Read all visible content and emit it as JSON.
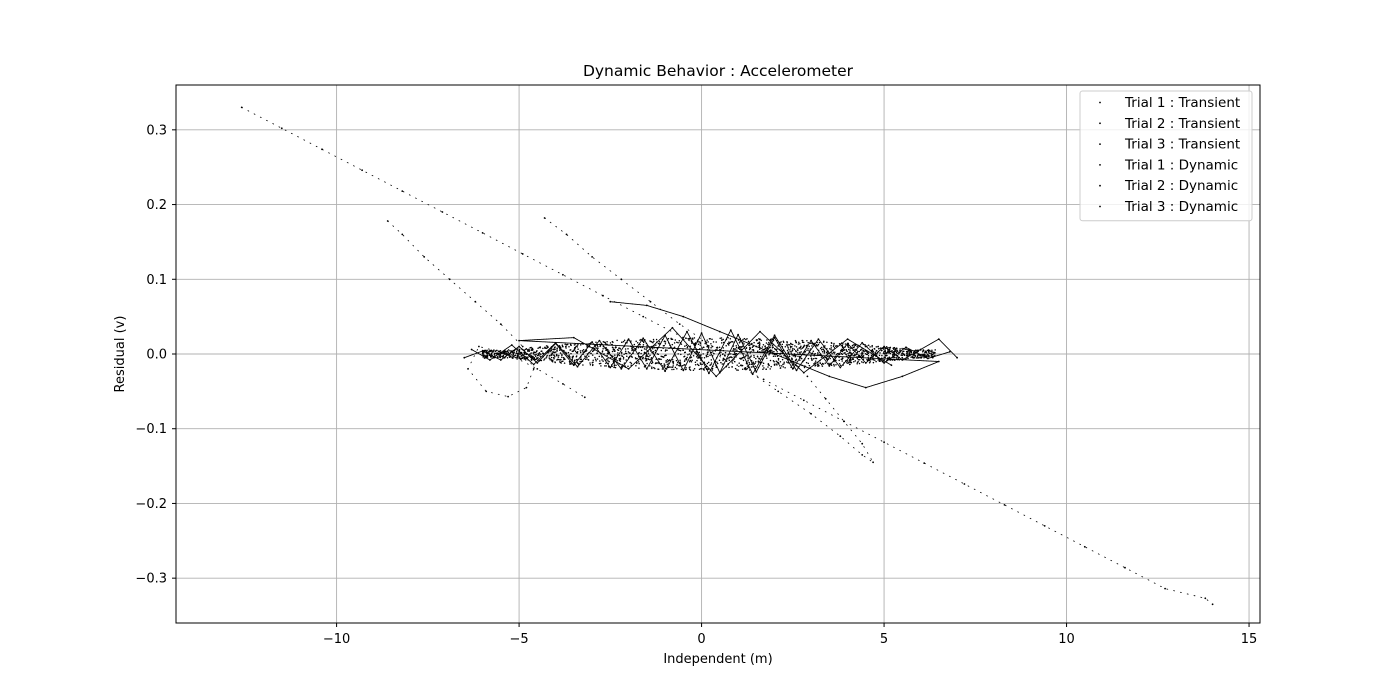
{
  "chart_data": {
    "type": "scatter",
    "title": "Dynamic Behavior : Accelerometer",
    "xlabel": "Independent (m)",
    "ylabel": "Residual (v)",
    "xlim": [
      -14.4,
      15.3
    ],
    "ylim": [
      -0.36,
      0.36
    ],
    "x_ticks": [
      -10,
      -5,
      0,
      5,
      10,
      15
    ],
    "x_tick_labels": [
      "−10",
      "−5",
      "0",
      "5",
      "10",
      "15"
    ],
    "y_ticks": [
      -0.3,
      -0.2,
      -0.1,
      0.0,
      0.1,
      0.2,
      0.3
    ],
    "y_tick_labels": [
      "−0.3",
      "−0.2",
      "−0.1",
      "0.0",
      "0.1",
      "0.2",
      "0.3"
    ],
    "grid": true,
    "legend_position": "top-right",
    "marker_color": "#000000",
    "series": [
      {
        "name": "Trial 1 : Transient",
        "x": [
          -12.6,
          -11.5,
          -10.4,
          -9.3,
          -8.2,
          -7.1,
          -6.0,
          -4.9,
          -3.8,
          -2.7,
          -1.6,
          -0.5,
          0.6,
          1.7,
          2.8,
          3.9,
          5.0,
          6.1,
          7.2,
          8.3,
          9.4,
          10.5,
          11.6,
          12.7,
          13.8,
          14.0
        ],
        "y": [
          0.33,
          0.302,
          0.274,
          0.246,
          0.218,
          0.19,
          0.162,
          0.134,
          0.106,
          0.078,
          0.05,
          0.022,
          -0.006,
          -0.034,
          -0.062,
          -0.09,
          -0.118,
          -0.146,
          -0.174,
          -0.202,
          -0.23,
          -0.258,
          -0.286,
          -0.314,
          -0.327,
          -0.335
        ]
      },
      {
        "name": "Trial 2 : Transient",
        "x": [
          -8.6,
          -8.2,
          -7.6,
          -6.9,
          -6.2,
          -5.5,
          -4.9,
          -4.6,
          -4.8,
          -5.3,
          -5.9,
          -6.4,
          -6.1,
          -5.3,
          -4.5,
          -3.8,
          -3.2
        ],
        "y": [
          0.178,
          0.16,
          0.13,
          0.1,
          0.07,
          0.04,
          0.01,
          -0.02,
          -0.045,
          -0.057,
          -0.05,
          -0.02,
          0.01,
          0.0,
          -0.02,
          -0.04,
          -0.058
        ]
      },
      {
        "name": "Trial 3 : Transient",
        "x": [
          -4.3,
          -3.7,
          -3.0,
          -2.2,
          -1.4,
          -0.6,
          0.3,
          1.2,
          2.1,
          3.0,
          3.8,
          4.4,
          4.7,
          4.4,
          3.9,
          3.4,
          2.9
        ],
        "y": [
          0.182,
          0.16,
          0.13,
          0.1,
          0.07,
          0.04,
          0.01,
          -0.02,
          -0.05,
          -0.08,
          -0.11,
          -0.135,
          -0.145,
          -0.12,
          -0.09,
          -0.06,
          -0.03
        ]
      },
      {
        "name": "Trial 1 : Dynamic",
        "x": [
          -6.5,
          -6.0,
          -5.5,
          -5.0,
          -4.5,
          -4.0,
          -3.5,
          -3.0,
          -2.5,
          -2.0,
          -1.5,
          -1.0,
          -0.5,
          0.0,
          0.5,
          1.0,
          1.5,
          2.0,
          2.5,
          3.0,
          3.5,
          4.0,
          4.5,
          5.0,
          5.5,
          6.0,
          6.5,
          7.0
        ],
        "y": [
          -0.005,
          0.004,
          -0.008,
          0.01,
          -0.012,
          0.014,
          -0.015,
          0.016,
          -0.018,
          0.02,
          -0.02,
          0.025,
          -0.022,
          0.028,
          -0.025,
          0.026,
          -0.024,
          0.022,
          -0.02,
          0.018,
          -0.016,
          0.014,
          -0.012,
          0.01,
          -0.008,
          0.006,
          0.02,
          -0.005
        ]
      },
      {
        "name": "Trial 2 : Dynamic",
        "x": [
          -6.3,
          -5.8,
          -5.2,
          -4.6,
          -4.0,
          -3.4,
          -2.8,
          -2.2,
          -1.6,
          -1.0,
          -0.4,
          0.2,
          0.8,
          1.4,
          2.0,
          2.6,
          3.2,
          3.8,
          4.4,
          5.0,
          5.6,
          6.2,
          6.8
        ],
        "y": [
          0.006,
          -0.008,
          0.012,
          -0.014,
          0.015,
          -0.017,
          0.018,
          -0.02,
          0.021,
          -0.023,
          0.03,
          -0.026,
          0.032,
          -0.027,
          0.025,
          -0.022,
          0.02,
          -0.018,
          0.015,
          -0.012,
          0.009,
          -0.006,
          0.003
        ]
      },
      {
        "name": "Trial 3 : Dynamic",
        "x": [
          -2.5,
          -1.5,
          -0.5,
          0.5,
          1.5,
          2.5,
          3.5,
          4.5,
          5.5,
          6.5,
          -5.0,
          -3.5,
          -2.0,
          -0.8,
          0.4,
          1.6,
          2.8,
          4.0,
          5.2
        ],
        "y": [
          0.07,
          0.065,
          0.05,
          0.03,
          0.01,
          -0.01,
          -0.03,
          -0.045,
          -0.03,
          -0.01,
          0.018,
          0.022,
          -0.02,
          0.035,
          -0.03,
          0.03,
          -0.025,
          0.02,
          -0.015
        ]
      }
    ]
  }
}
